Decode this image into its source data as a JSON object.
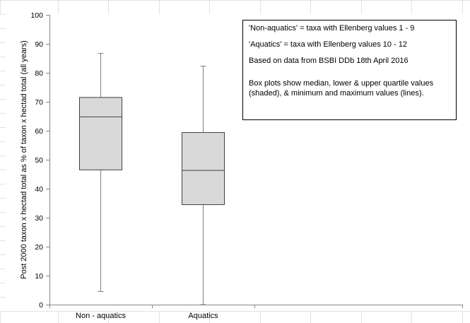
{
  "chart_data": {
    "type": "boxplot",
    "categories": [
      "Non - aquatics",
      "Aquatics"
    ],
    "series": [
      {
        "category": "Non - aquatics",
        "min": 4.5,
        "q1": 46.5,
        "median": 64.8,
        "q3": 71.5,
        "max": 86.7
      },
      {
        "category": "Aquatics",
        "min": 0,
        "q1": 34.5,
        "median": 46.3,
        "q3": 59.4,
        "max": 82.3
      }
    ],
    "ylabel": "Post 2000 taxon x hectad total as % of taxon x hectad total (all years)",
    "ylim": [
      0,
      100
    ],
    "yticks": [
      0,
      10,
      20,
      30,
      40,
      50,
      60,
      70,
      80,
      90,
      100
    ],
    "box_fill": "#d9d9d9",
    "box_stroke": "#404040",
    "whisker_color": "#808080"
  },
  "notes": {
    "line1": "'Non-aquatics' = taxa with Ellenberg values 1 - 9",
    "line2": "'Aquatics' = taxa with Ellenberg values 10 - 12",
    "line3": "Based on data from BSBI DDb 18th April 2016",
    "line4": "Box plots show median, lower & upper quartile values (shaded), & minimum and maximum values  (lines)."
  }
}
